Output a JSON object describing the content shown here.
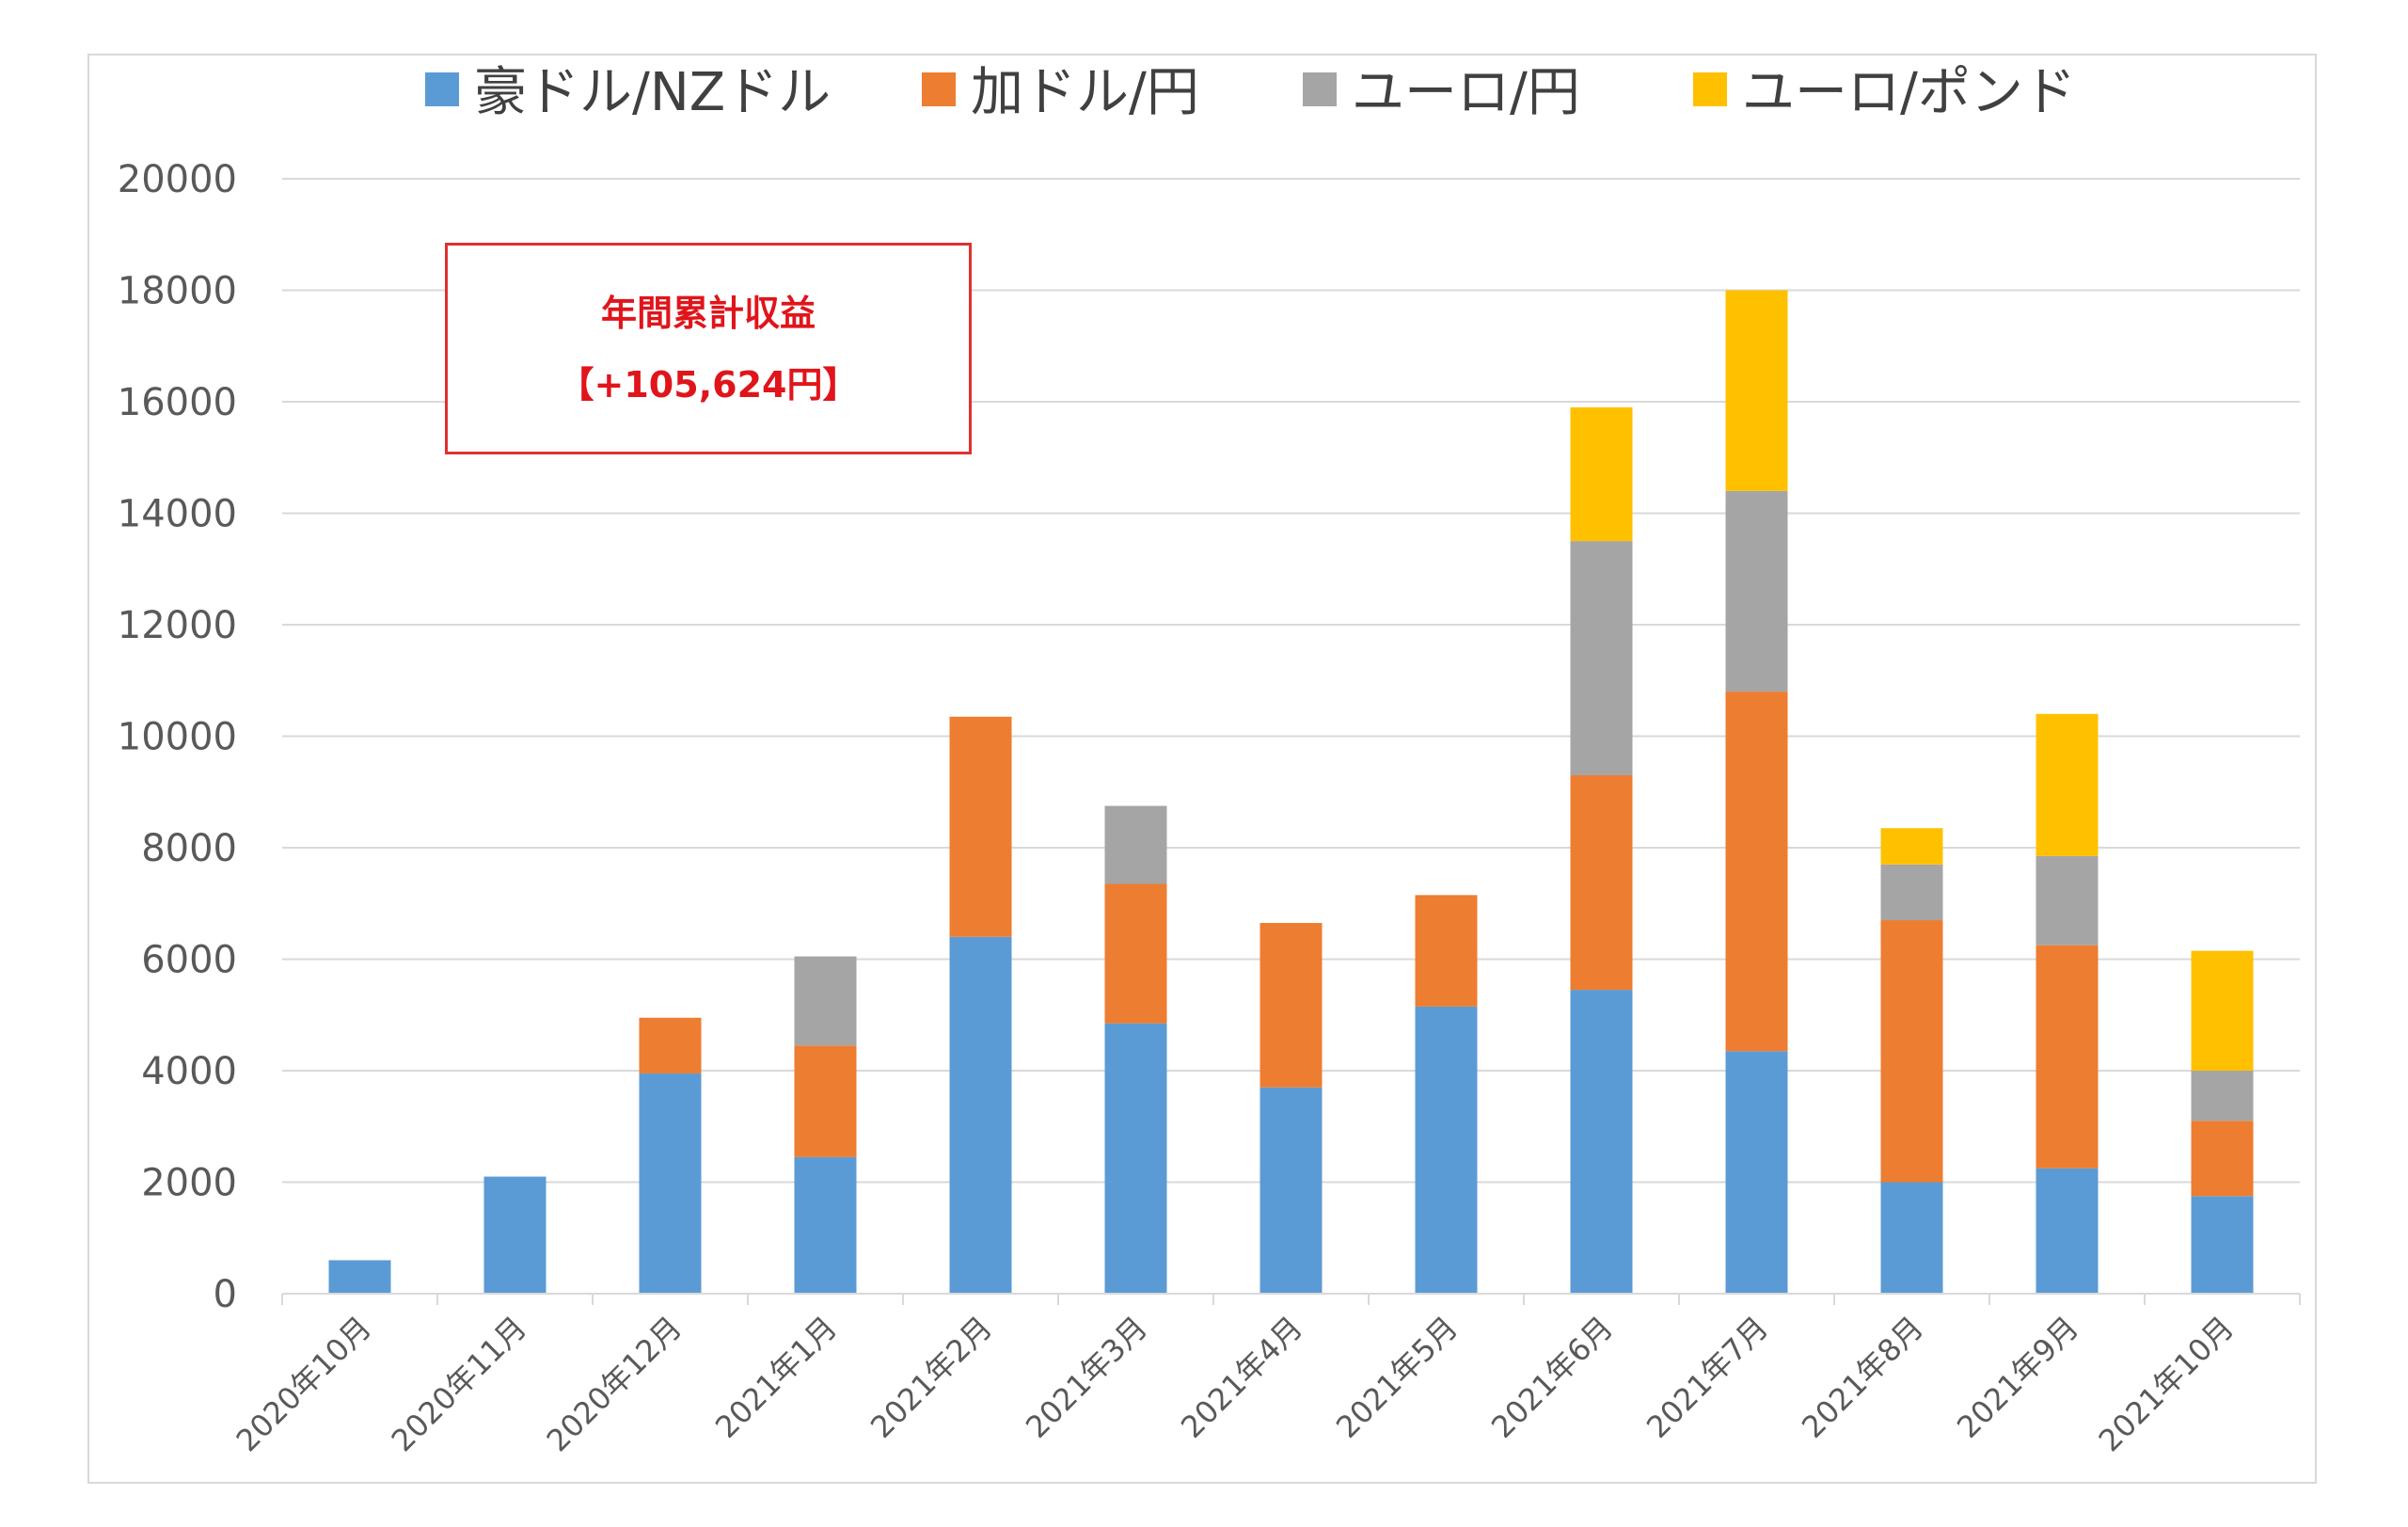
{
  "chart_data": {
    "type": "bar",
    "stacked": true,
    "categories": [
      "2020年10月",
      "2020年11月",
      "2020年12月",
      "2021年1月",
      "2021年2月",
      "2021年3月",
      "2021年4月",
      "2021年5月",
      "2021年6月",
      "2021年7月",
      "2021年8月",
      "2021年9月",
      "2021年10月"
    ],
    "series": [
      {
        "name": "豪ドル/NZドル",
        "color": "#5b9bd5",
        "values": [
          600,
          2100,
          3950,
          2450,
          6400,
          4850,
          3700,
          5150,
          5450,
          4350,
          2000,
          2250,
          1750
        ]
      },
      {
        "name": "加ドル/円",
        "color": "#ed7d31",
        "values": [
          0,
          0,
          1000,
          2000,
          3950,
          2500,
          2950,
          2000,
          3850,
          6450,
          4700,
          4000,
          1350
        ]
      },
      {
        "name": "ユーロ/円",
        "color": "#a5a5a5",
        "values": [
          0,
          0,
          0,
          1600,
          0,
          1400,
          0,
          0,
          4200,
          3600,
          1000,
          1600,
          900
        ]
      },
      {
        "name": "ユーロ/ポンド",
        "color": "#ffc000",
        "values": [
          0,
          0,
          0,
          0,
          0,
          0,
          0,
          0,
          2400,
          3600,
          650,
          2550,
          2150
        ]
      }
    ],
    "ylim": [
      0,
      20000
    ],
    "yticks": [
      0,
      2000,
      4000,
      6000,
      8000,
      10000,
      12000,
      14000,
      16000,
      18000,
      20000
    ],
    "grid": true,
    "legend_position": "top",
    "annotation": {
      "line1": "年間累計収益",
      "line2": "【+105,624円】",
      "color": "#e0151b"
    }
  }
}
